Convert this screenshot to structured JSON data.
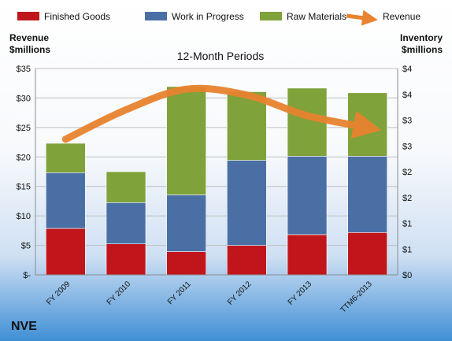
{
  "chart_data": {
    "type": "bar",
    "stacked": true,
    "title": "12-Month Periods",
    "company": "NVE",
    "categories": [
      "FY 2009",
      "FY 2010",
      "FY 2011",
      "FY 2012",
      "FY 2013",
      "TTM6-2013"
    ],
    "series": [
      {
        "name": "Finished Goods",
        "color": "#c0161b",
        "values": [
          0.9,
          0.6,
          0.45,
          0.57,
          0.78,
          0.82
        ]
      },
      {
        "name": "Work in Progress",
        "color": "#4a6fa5",
        "values": [
          1.08,
          0.8,
          1.1,
          1.65,
          1.52,
          1.48
        ]
      },
      {
        "name": "Raw Materials",
        "color": "#7fa23a",
        "values": [
          0.57,
          0.6,
          2.1,
          1.33,
          1.32,
          1.23
        ]
      }
    ],
    "line_series": {
      "name": "Revenue",
      "color": "#e8832f",
      "values": [
        23,
        28,
        31.5,
        30.5,
        27,
        25
      ]
    },
    "left_axis": {
      "label_line1": "Revenue",
      "label_line2": "$millions",
      "range": [
        0,
        35
      ],
      "ticks": [
        "$-",
        "$5",
        "$10",
        "$15",
        "$20",
        "$25",
        "$30",
        "$35"
      ]
    },
    "right_axis": {
      "label_line1": "Inventory",
      "label_line2": "$millions",
      "range": [
        0,
        4
      ],
      "ticks": [
        "$0",
        "$1",
        "$1",
        "$2",
        "$2",
        "$3",
        "$3",
        "$4",
        "$4"
      ]
    },
    "legend_position": "top",
    "grid": true
  }
}
